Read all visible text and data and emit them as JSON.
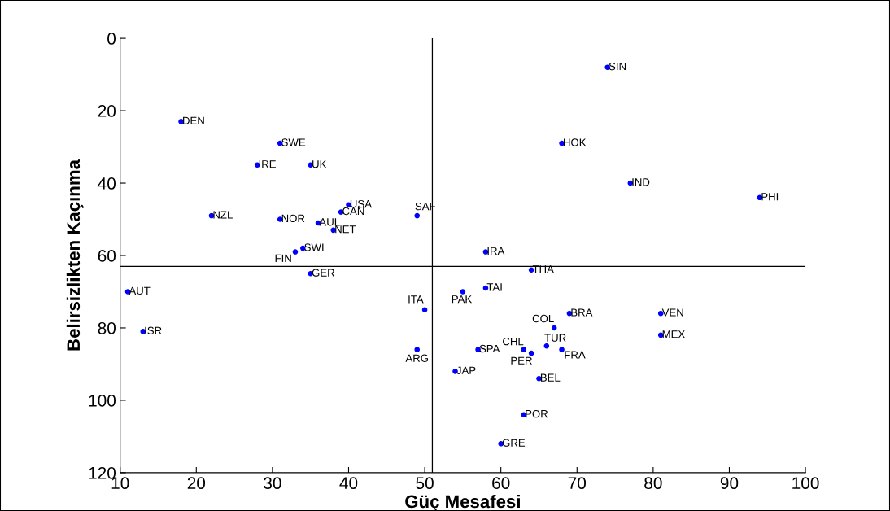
{
  "chart_data": {
    "type": "scatter",
    "xlabel": "Güç Mesafesi",
    "ylabel": "Belirsizlikten Kaçınma",
    "x": [
      74,
      18,
      31,
      68,
      28,
      35,
      77,
      94,
      40,
      39,
      22,
      49,
      36,
      31,
      38,
      34,
      33,
      58,
      64,
      35,
      11,
      58,
      55,
      50,
      69,
      81,
      67,
      13,
      81,
      49,
      63,
      57,
      66,
      64,
      68,
      54,
      65,
      63,
      60
    ],
    "series": [
      {
        "color": "#0000ff",
        "values": [
          8,
          23,
          29,
          29,
          35,
          35,
          40,
          44,
          46,
          48,
          49,
          49,
          51,
          50,
          53,
          58,
          59,
          59,
          64,
          65,
          70,
          69,
          70,
          75,
          76,
          76,
          80,
          81,
          82,
          86,
          86,
          86,
          85,
          87,
          86,
          92,
          94,
          104,
          112
        ]
      }
    ],
    "annotations": [
      {
        "text": "SIN",
        "x": 74,
        "y": 8
      },
      {
        "text": "DEN",
        "x": 18,
        "y": 23
      },
      {
        "text": "SWE",
        "x": 31,
        "y": 29
      },
      {
        "text": "HOK",
        "x": 68,
        "y": 29
      },
      {
        "text": "IRE",
        "x": 28,
        "y": 35
      },
      {
        "text": "UK",
        "x": 35,
        "y": 35
      },
      {
        "text": "IND",
        "x": 77,
        "y": 40
      },
      {
        "text": "PHI",
        "x": 94,
        "y": 44
      },
      {
        "text": "USA",
        "x": 40,
        "y": 46
      },
      {
        "text": "CAN",
        "x": 39,
        "y": 48
      },
      {
        "text": "NZL",
        "x": 22,
        "y": 49
      },
      {
        "text": "SAF",
        "x": 49,
        "y": 49
      },
      {
        "text": "AUL",
        "x": 36,
        "y": 51
      },
      {
        "text": "NOR",
        "x": 31,
        "y": 50
      },
      {
        "text": "NET",
        "x": 38,
        "y": 53
      },
      {
        "text": "SWI",
        "x": 34,
        "y": 58
      },
      {
        "text": "FIN",
        "x": 33,
        "y": 59
      },
      {
        "text": "IRA",
        "x": 58,
        "y": 59
      },
      {
        "text": "THA",
        "x": 64,
        "y": 64
      },
      {
        "text": "GER",
        "x": 35,
        "y": 65
      },
      {
        "text": "AUT",
        "x": 11,
        "y": 70
      },
      {
        "text": "TAI",
        "x": 58,
        "y": 69
      },
      {
        "text": "PAK",
        "x": 55,
        "y": 70
      },
      {
        "text": "ITA",
        "x": 50,
        "y": 75
      },
      {
        "text": "BRA",
        "x": 69,
        "y": 76
      },
      {
        "text": "VEN",
        "x": 81,
        "y": 76
      },
      {
        "text": "COL",
        "x": 67,
        "y": 80
      },
      {
        "text": "ISR",
        "x": 13,
        "y": 81
      },
      {
        "text": "MEX",
        "x": 81,
        "y": 82
      },
      {
        "text": "ARG",
        "x": 49,
        "y": 86
      },
      {
        "text": "CHL",
        "x": 63,
        "y": 86
      },
      {
        "text": "SPA",
        "x": 57,
        "y": 86
      },
      {
        "text": "TUR",
        "x": 66,
        "y": 85
      },
      {
        "text": "PER",
        "x": 64,
        "y": 87
      },
      {
        "text": "FRA",
        "x": 68,
        "y": 86
      },
      {
        "text": "JAP",
        "x": 54,
        "y": 92
      },
      {
        "text": "BEL",
        "x": 65,
        "y": 94
      },
      {
        "text": "POR",
        "x": 63,
        "y": 104
      },
      {
        "text": "GRE",
        "x": 60,
        "y": 112
      }
    ],
    "ref_lines": [
      {
        "axis": "x",
        "value": 51,
        "color": "#000000"
      },
      {
        "axis": "y",
        "value": 63,
        "color": "#000000"
      }
    ],
    "xlim": [
      10,
      100
    ],
    "xticks": [
      10,
      20,
      30,
      40,
      50,
      60,
      70,
      80,
      90,
      100
    ],
    "ylim": [
      120,
      0
    ],
    "yticks": [
      0,
      20,
      40,
      60,
      80,
      100,
      120
    ],
    "marker": "circle",
    "grid": false
  }
}
